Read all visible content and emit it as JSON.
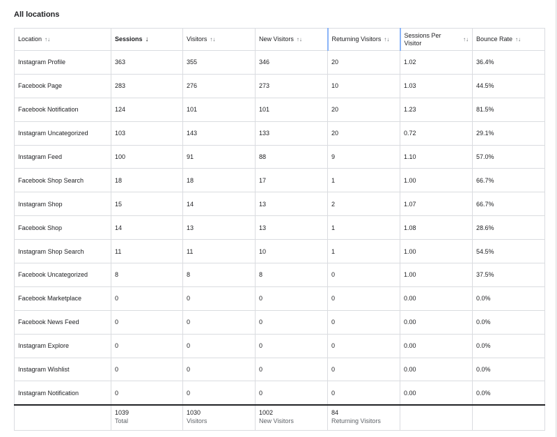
{
  "title": "All locations",
  "columns": [
    {
      "label": "Location",
      "sort": "unsorted"
    },
    {
      "label": "Sessions",
      "sort": "desc"
    },
    {
      "label": "Visitors",
      "sort": "unsorted"
    },
    {
      "label": "New Visitors",
      "sort": "unsorted"
    },
    {
      "label": "Returning Visitors",
      "sort": "unsorted"
    },
    {
      "label": "Sessions Per Visitor",
      "sort": "unsorted"
    },
    {
      "label": "Bounce Rate",
      "sort": "unsorted"
    }
  ],
  "icons": {
    "unsorted": "↑↓",
    "desc": "↓"
  },
  "rows": [
    [
      "Instagram Profile",
      "363",
      "355",
      "346",
      "20",
      "1.02",
      "36.4%"
    ],
    [
      "Facebook Page",
      "283",
      "276",
      "273",
      "10",
      "1.03",
      "44.5%"
    ],
    [
      "Facebook Notification",
      "124",
      "101",
      "101",
      "20",
      "1.23",
      "81.5%"
    ],
    [
      "Instagram Uncategorized",
      "103",
      "143",
      "133",
      "20",
      "0.72",
      "29.1%"
    ],
    [
      "Instagram Feed",
      "100",
      "91",
      "88",
      "9",
      "1.10",
      "57.0%"
    ],
    [
      "Facebook Shop Search",
      "18",
      "18",
      "17",
      "1",
      "1.00",
      "66.7%"
    ],
    [
      "Instagram Shop",
      "15",
      "14",
      "13",
      "2",
      "1.07",
      "66.7%"
    ],
    [
      "Facebook Shop",
      "14",
      "13",
      "13",
      "1",
      "1.08",
      "28.6%"
    ],
    [
      "Instagram Shop Search",
      "11",
      "11",
      "10",
      "1",
      "1.00",
      "54.5%"
    ],
    [
      "Facebook Uncategorized",
      "8",
      "8",
      "8",
      "0",
      "1.00",
      "37.5%"
    ],
    [
      "Facebook Marketplace",
      "0",
      "0",
      "0",
      "0",
      "0.00",
      "0.0%"
    ],
    [
      "Facebook News Feed",
      "0",
      "0",
      "0",
      "0",
      "0.00",
      "0.0%"
    ],
    [
      "Instagram Explore",
      "0",
      "0",
      "0",
      "0",
      "0.00",
      "0.0%"
    ],
    [
      "Instagram Wishlist",
      "0",
      "0",
      "0",
      "0",
      "0.00",
      "0.0%"
    ],
    [
      "Instagram Notification",
      "0",
      "0",
      "0",
      "0",
      "0.00",
      "0.0%"
    ]
  ],
  "totals": [
    {
      "value": "",
      "label": ""
    },
    {
      "value": "1039",
      "label": "Total"
    },
    {
      "value": "1030",
      "label": "Visitors"
    },
    {
      "value": "1002",
      "label": "New Visitors"
    },
    {
      "value": "84",
      "label": "Returning Visitors"
    },
    {
      "value": "",
      "label": ""
    },
    {
      "value": "",
      "label": ""
    }
  ]
}
